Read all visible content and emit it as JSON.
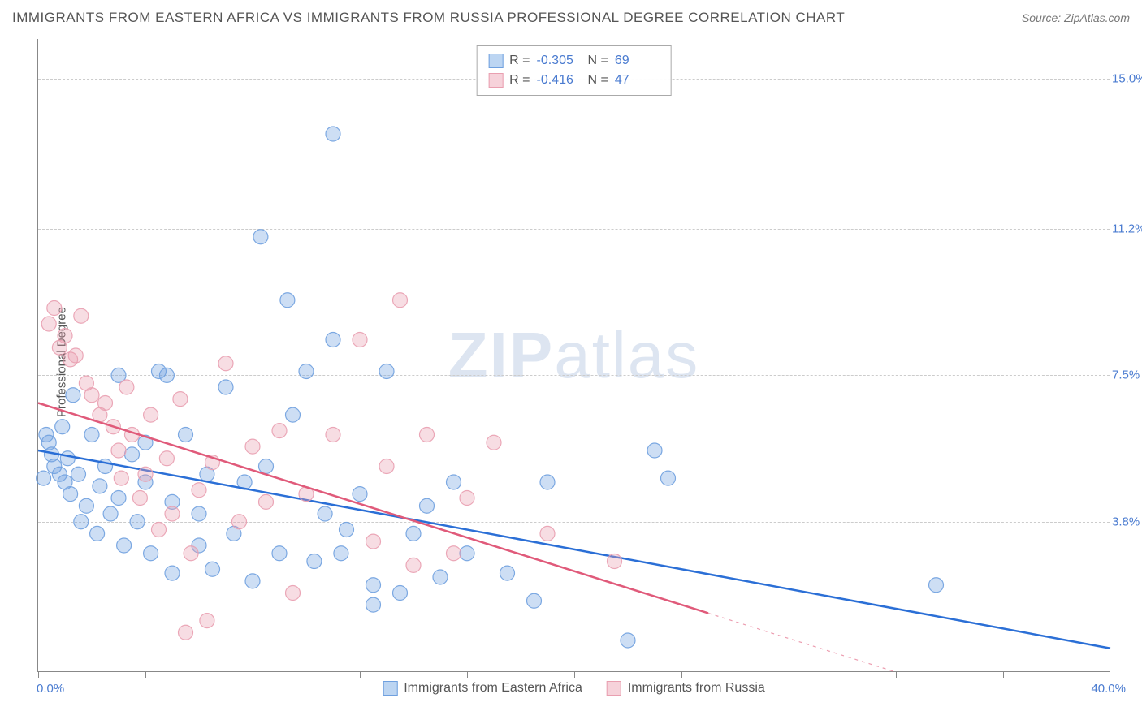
{
  "title": "IMMIGRANTS FROM EASTERN AFRICA VS IMMIGRANTS FROM RUSSIA PROFESSIONAL DEGREE CORRELATION CHART",
  "source": "Source: ZipAtlas.com",
  "y_axis_label": "Professional Degree",
  "watermark_a": "ZIP",
  "watermark_b": "atlas",
  "chart": {
    "type": "scatter",
    "xlim": [
      0,
      40
    ],
    "ylim": [
      0,
      16
    ],
    "x_range_labels": [
      "0.0%",
      "40.0%"
    ],
    "y_ticks": [
      {
        "value": 3.8,
        "label": "3.8%"
      },
      {
        "value": 7.5,
        "label": "7.5%"
      },
      {
        "value": 11.2,
        "label": "11.2%"
      },
      {
        "value": 15.0,
        "label": "15.0%"
      }
    ],
    "x_tick_positions": [
      0,
      4,
      8,
      12,
      16,
      20,
      24,
      28,
      32,
      36
    ],
    "grid_color": "#cccccc",
    "background_color": "#ffffff",
    "marker_radius": 9,
    "marker_fill_opacity": 0.35,
    "marker_stroke_opacity": 0.9,
    "marker_stroke_width": 1.2,
    "trend_line_width": 2.5,
    "series": [
      {
        "name": "Immigrants from Eastern Africa",
        "color": "#6fa0df",
        "line_color": "#2b6fd6",
        "swatch_fill": "#bcd5f2",
        "swatch_border": "#6fa0df",
        "R": "-0.305",
        "N": "69",
        "trend": {
          "x1": 0,
          "y1": 5.6,
          "x2": 40,
          "y2": 0.6
        },
        "trend_dashed_from_x": null,
        "points": [
          [
            0.3,
            6.0
          ],
          [
            0.4,
            5.8
          ],
          [
            0.5,
            5.5
          ],
          [
            0.6,
            5.2
          ],
          [
            0.8,
            5.0
          ],
          [
            0.9,
            6.2
          ],
          [
            1.0,
            4.8
          ],
          [
            1.2,
            4.5
          ],
          [
            1.3,
            7.0
          ],
          [
            1.5,
            5.0
          ],
          [
            1.6,
            3.8
          ],
          [
            1.8,
            4.2
          ],
          [
            2.0,
            6.0
          ],
          [
            2.2,
            3.5
          ],
          [
            2.5,
            5.2
          ],
          [
            2.7,
            4.0
          ],
          [
            3,
            7.5
          ],
          [
            3.2,
            3.2
          ],
          [
            3.5,
            5.5
          ],
          [
            3,
            4.4
          ],
          [
            4,
            4.8
          ],
          [
            4.2,
            3.0
          ],
          [
            4.5,
            7.6
          ],
          [
            4,
            5.8
          ],
          [
            5,
            4.3
          ],
          [
            5,
            2.5
          ],
          [
            5.5,
            6.0
          ],
          [
            6,
            3.2
          ],
          [
            6.3,
            5.0
          ],
          [
            6.5,
            2.6
          ],
          [
            7,
            7.2
          ],
          [
            7.3,
            3.5
          ],
          [
            7.7,
            4.8
          ],
          [
            8,
            2.3
          ],
          [
            8.3,
            11.0
          ],
          [
            8.5,
            5.2
          ],
          [
            9,
            3.0
          ],
          [
            9.3,
            9.4
          ],
          [
            9.5,
            6.5
          ],
          [
            10,
            7.6
          ],
          [
            10.3,
            2.8
          ],
          [
            10.7,
            4.0
          ],
          [
            11,
            13.6
          ],
          [
            11,
            8.4
          ],
          [
            11.5,
            3.6
          ],
          [
            12,
            4.5
          ],
          [
            12.5,
            2.2
          ],
          [
            13,
            7.6
          ],
          [
            13.5,
            2.0
          ],
          [
            14,
            3.5
          ],
          [
            14.5,
            4.2
          ],
          [
            15,
            2.4
          ],
          [
            15.5,
            4.8
          ],
          [
            16,
            3.0
          ],
          [
            17.5,
            2.5
          ],
          [
            18.5,
            1.8
          ],
          [
            12.5,
            1.7
          ],
          [
            19,
            4.8
          ],
          [
            22,
            0.8
          ],
          [
            23,
            5.6
          ],
          [
            23.5,
            4.9
          ],
          [
            33.5,
            2.2
          ],
          [
            11.3,
            3.0
          ],
          [
            6,
            4.0
          ],
          [
            4.8,
            7.5
          ],
          [
            3.7,
            3.8
          ],
          [
            2.3,
            4.7
          ],
          [
            1.1,
            5.4
          ],
          [
            0.2,
            4.9
          ]
        ]
      },
      {
        "name": "Immigrants from Russia",
        "color": "#e99fb0",
        "line_color": "#e05a7a",
        "swatch_fill": "#f6d2da",
        "swatch_border": "#e99fb0",
        "R": "-0.416",
        "N": "47",
        "trend": {
          "x1": 0,
          "y1": 6.8,
          "x2": 32,
          "y2": 0.0
        },
        "trend_dashed_from_x": 25,
        "points": [
          [
            0.4,
            8.8
          ],
          [
            0.6,
            9.2
          ],
          [
            0.8,
            8.2
          ],
          [
            1.0,
            8.5
          ],
          [
            1.2,
            7.9
          ],
          [
            1.4,
            8.0
          ],
          [
            1.6,
            9.0
          ],
          [
            1.8,
            7.3
          ],
          [
            2.0,
            7.0
          ],
          [
            2.3,
            6.5
          ],
          [
            2.5,
            6.8
          ],
          [
            2.8,
            6.2
          ],
          [
            3.0,
            5.6
          ],
          [
            3.3,
            7.2
          ],
          [
            3.5,
            6.0
          ],
          [
            3.8,
            4.4
          ],
          [
            4,
            5.0
          ],
          [
            4.2,
            6.5
          ],
          [
            4.5,
            3.6
          ],
          [
            4.8,
            5.4
          ],
          [
            5,
            4.0
          ],
          [
            5.3,
            6.9
          ],
          [
            5.7,
            3.0
          ],
          [
            6,
            4.6
          ],
          [
            6.5,
            5.3
          ],
          [
            7,
            7.8
          ],
          [
            7.5,
            3.8
          ],
          [
            8,
            5.7
          ],
          [
            8.5,
            4.3
          ],
          [
            9,
            6.1
          ],
          [
            9.5,
            2.0
          ],
          [
            10,
            4.5
          ],
          [
            5.5,
            1.0
          ],
          [
            11,
            6.0
          ],
          [
            12,
            8.4
          ],
          [
            12.5,
            3.3
          ],
          [
            13,
            5.2
          ],
          [
            13.5,
            9.4
          ],
          [
            14,
            2.7
          ],
          [
            14.5,
            6.0
          ],
          [
            15.5,
            3.0
          ],
          [
            16,
            4.4
          ],
          [
            17,
            5.8
          ],
          [
            19,
            3.5
          ],
          [
            21.5,
            2.8
          ],
          [
            6.3,
            1.3
          ],
          [
            3.1,
            4.9
          ]
        ]
      }
    ]
  }
}
